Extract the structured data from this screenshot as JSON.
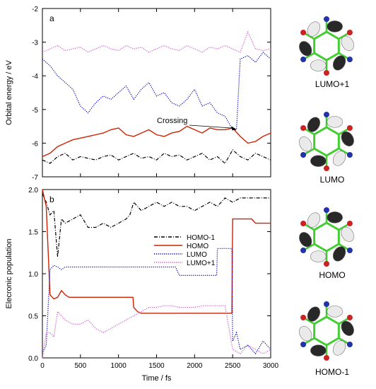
{
  "chart_data": [
    {
      "type": "line",
      "panel_label": "a",
      "xlabel": "",
      "ylabel": "Orbital energy / eV",
      "xlim": [
        0,
        3000
      ],
      "ylim": [
        -7,
        -2
      ],
      "xticks": [
        0,
        500,
        1000,
        1500,
        2000,
        2500,
        3000
      ],
      "yticks": [
        -7,
        -6,
        -5,
        -4,
        -3,
        -2
      ],
      "annotation": "Crossing",
      "series": [
        {
          "name": "HOMO-1",
          "color": "#000000",
          "style": "dashdot",
          "x": [
            0,
            100,
            200,
            300,
            400,
            500,
            600,
            700,
            800,
            900,
            1000,
            1100,
            1200,
            1300,
            1400,
            1500,
            1600,
            1700,
            1800,
            1900,
            2000,
            2100,
            2200,
            2300,
            2400,
            2500,
            2600,
            2700,
            2800,
            2900,
            3000
          ],
          "y": [
            -6.5,
            -6.6,
            -6.4,
            -6.3,
            -6.5,
            -6.4,
            -6.45,
            -6.5,
            -6.4,
            -6.35,
            -6.5,
            -6.4,
            -6.3,
            -6.45,
            -6.4,
            -6.5,
            -6.3,
            -6.4,
            -6.35,
            -6.5,
            -6.4,
            -6.3,
            -6.5,
            -6.4,
            -6.6,
            -6.2,
            -6.4,
            -6.5,
            -6.3,
            -6.4,
            -6.5
          ]
        },
        {
          "name": "HOMO",
          "color": "#cc2200",
          "style": "solid",
          "x": [
            0,
            100,
            200,
            300,
            400,
            500,
            600,
            700,
            800,
            900,
            1000,
            1100,
            1200,
            1300,
            1400,
            1500,
            1600,
            1700,
            1800,
            1900,
            2000,
            2100,
            2200,
            2300,
            2400,
            2500,
            2600,
            2700,
            2800,
            2900,
            3000
          ],
          "y": [
            -6.4,
            -6.3,
            -6.1,
            -6.0,
            -5.9,
            -5.85,
            -5.8,
            -5.75,
            -5.7,
            -5.6,
            -5.55,
            -5.75,
            -5.8,
            -5.7,
            -5.6,
            -5.75,
            -5.8,
            -5.7,
            -5.65,
            -5.5,
            -5.6,
            -5.7,
            -5.55,
            -5.6,
            -5.6,
            -5.55,
            -5.8,
            -6.0,
            -5.95,
            -5.8,
            -5.7
          ]
        },
        {
          "name": "LUMO",
          "color": "#0000cc",
          "style": "dotted",
          "x": [
            0,
            100,
            200,
            300,
            400,
            500,
            600,
            700,
            800,
            900,
            1000,
            1100,
            1200,
            1300,
            1400,
            1500,
            1600,
            1700,
            1800,
            1900,
            2000,
            2100,
            2200,
            2300,
            2400,
            2500,
            2550,
            2600,
            2700,
            2800,
            2900,
            3000
          ],
          "y": [
            -3.5,
            -3.7,
            -4.0,
            -4.2,
            -4.4,
            -4.9,
            -5.1,
            -4.8,
            -4.6,
            -4.7,
            -4.5,
            -4.3,
            -4.7,
            -4.4,
            -4.2,
            -4.6,
            -4.5,
            -4.8,
            -4.9,
            -4.7,
            -4.4,
            -4.9,
            -4.8,
            -5.1,
            -5.2,
            -5.6,
            -5.6,
            -3.5,
            -3.4,
            -3.6,
            -3.3,
            -3.5
          ]
        },
        {
          "name": "LUMO+1",
          "color": "#cc55cc",
          "style": "dotted",
          "x": [
            0,
            100,
            200,
            300,
            400,
            500,
            600,
            700,
            800,
            900,
            1000,
            1100,
            1200,
            1300,
            1400,
            1500,
            1600,
            1700,
            1800,
            1900,
            2000,
            2100,
            2200,
            2300,
            2400,
            2500,
            2600,
            2700,
            2800,
            2900,
            3000
          ],
          "y": [
            -3.3,
            -3.2,
            -3.1,
            -3.25,
            -3.2,
            -3.15,
            -3.3,
            -3.2,
            -3.1,
            -3.2,
            -3.25,
            -3.1,
            -3.2,
            -3.15,
            -3.3,
            -3.2,
            -3.1,
            -3.2,
            -3.25,
            -3.1,
            -3.2,
            -3.3,
            -3.15,
            -3.2,
            -3.1,
            -3.2,
            -3.3,
            -2.7,
            -3.2,
            -3.25,
            -3.2
          ]
        }
      ]
    },
    {
      "type": "line",
      "panel_label": "b",
      "xlabel": "Time / fs",
      "ylabel": "Elecronic population",
      "xlim": [
        0,
        3000
      ],
      "ylim": [
        0,
        2
      ],
      "xticks": [
        0,
        500,
        1000,
        1500,
        2000,
        2500,
        3000
      ],
      "yticks": [
        0.0,
        0.5,
        1.0,
        1.5,
        2.0
      ],
      "legend_position": "center",
      "series": [
        {
          "name": "HOMO-1",
          "color": "#000000",
          "style": "dashdot",
          "x": [
            0,
            50,
            100,
            150,
            200,
            250,
            300,
            400,
            500,
            600,
            700,
            800,
            900,
            1000,
            1100,
            1150,
            1200,
            1300,
            1400,
            1500,
            1600,
            1700,
            1800,
            1900,
            2000,
            2100,
            2200,
            2300,
            2400,
            2500,
            2600,
            2700,
            2800,
            2900,
            3000
          ],
          "y": [
            1.95,
            1.85,
            1.7,
            1.75,
            1.2,
            1.65,
            1.6,
            1.65,
            1.7,
            1.55,
            1.55,
            1.6,
            1.55,
            1.6,
            1.65,
            1.7,
            1.85,
            1.75,
            1.8,
            1.85,
            1.8,
            1.85,
            1.8,
            1.8,
            1.75,
            1.8,
            1.85,
            1.8,
            1.9,
            1.85,
            1.9,
            1.9,
            1.9,
            1.9,
            1.9
          ]
        },
        {
          "name": "HOMO",
          "color": "#cc2200",
          "style": "solid",
          "x": [
            0,
            50,
            100,
            150,
            200,
            250,
            300,
            350,
            400,
            500,
            600,
            700,
            800,
            900,
            1000,
            1100,
            1190,
            1200,
            1250,
            1300,
            1400,
            1500,
            1600,
            1700,
            1800,
            1900,
            2000,
            2100,
            2200,
            2300,
            2400,
            2490,
            2500,
            2550,
            2600,
            2700,
            2750,
            2800,
            2900,
            3000
          ],
          "y": [
            2.0,
            1.8,
            0.75,
            0.7,
            0.72,
            0.8,
            0.75,
            0.72,
            0.72,
            0.72,
            0.72,
            0.72,
            0.72,
            0.72,
            0.72,
            0.72,
            0.72,
            0.6,
            0.55,
            0.53,
            0.53,
            0.53,
            0.53,
            0.53,
            0.53,
            0.53,
            0.53,
            0.53,
            0.53,
            0.53,
            0.53,
            0.53,
            1.65,
            1.65,
            1.65,
            1.65,
            1.65,
            1.6,
            1.6,
            1.6
          ]
        },
        {
          "name": "LUMO",
          "color": "#0000cc",
          "style": "dotted",
          "x": [
            0,
            50,
            100,
            150,
            200,
            250,
            300,
            400,
            500,
            600,
            700,
            800,
            900,
            1000,
            1100,
            1200,
            1300,
            1400,
            1500,
            1600,
            1700,
            1750,
            1800,
            1900,
            2000,
            2100,
            2200,
            2290,
            2300,
            2400,
            2490,
            2500,
            2550,
            2600,
            2700,
            2800,
            2900,
            3000
          ],
          "y": [
            0.05,
            0.15,
            1.05,
            1.1,
            1.08,
            1.05,
            1.08,
            1.08,
            1.08,
            1.08,
            1.08,
            1.08,
            1.08,
            1.08,
            1.08,
            1.08,
            1.08,
            1.08,
            1.08,
            1.08,
            1.08,
            1.08,
            0.98,
            0.98,
            0.98,
            0.98,
            0.98,
            0.98,
            1.3,
            1.3,
            1.3,
            0.2,
            0.3,
            0.1,
            0.15,
            0.05,
            0.2,
            0.1
          ]
        },
        {
          "name": "LUMO+1",
          "color": "#cc55cc",
          "style": "dotted",
          "x": [
            0,
            50,
            100,
            150,
            200,
            250,
            300,
            400,
            500,
            600,
            700,
            800,
            900,
            1000,
            1100,
            1200,
            1300,
            1400,
            1500,
            1600,
            1700,
            1800,
            1900,
            2000,
            2100,
            2200,
            2300,
            2400,
            2500,
            2600,
            2700,
            2800,
            2900,
            3000
          ],
          "y": [
            0.0,
            0.3,
            0.3,
            0.25,
            0.55,
            0.5,
            0.45,
            0.4,
            0.4,
            0.45,
            0.35,
            0.3,
            0.35,
            0.4,
            0.45,
            0.5,
            0.55,
            0.6,
            0.6,
            0.62,
            0.62,
            0.6,
            0.6,
            0.6,
            0.62,
            0.62,
            0.62,
            0.62,
            0.1,
            0.05,
            0.15,
            0.1,
            0.05,
            0.1
          ]
        }
      ]
    }
  ],
  "molecule_labels": [
    "LUMO+1",
    "LUMO",
    "HOMO",
    "HOMO-1"
  ]
}
